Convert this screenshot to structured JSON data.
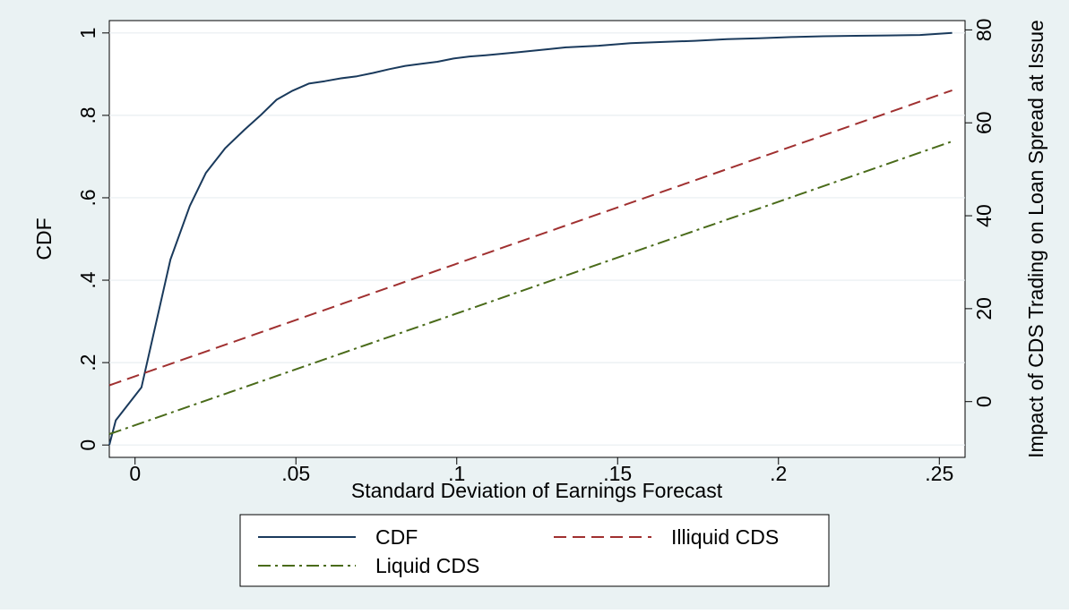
{
  "chart_data": {
    "type": "line",
    "title": "",
    "xlabel": "Standard Deviation of Earnings Forecast",
    "ylabel_left": "CDF",
    "ylabel_right": "Impact of CDS Trading on Loan Spread at Issue",
    "xlim": [
      -0.008,
      0.258
    ],
    "ylim_left": [
      -0.03,
      1.03
    ],
    "ylim_right": [
      -12,
      82
    ],
    "x_ticks": [
      {
        "value": 0,
        "label": "0"
      },
      {
        "value": 0.05,
        "label": ".05"
      },
      {
        "value": 0.1,
        "label": ".1"
      },
      {
        "value": 0.15,
        "label": ".15"
      },
      {
        "value": 0.2,
        "label": ".2"
      },
      {
        "value": 0.25,
        "label": ".25"
      }
    ],
    "y_left_ticks": [
      {
        "value": 0,
        "label": "0"
      },
      {
        "value": 0.2,
        "label": ".2"
      },
      {
        "value": 0.4,
        "label": ".4"
      },
      {
        "value": 0.6,
        "label": ".6"
      },
      {
        "value": 0.8,
        "label": ".8"
      },
      {
        "value": 1,
        "label": "1"
      }
    ],
    "y_right_ticks": [
      {
        "value": 0,
        "label": "0"
      },
      {
        "value": 20,
        "label": "20"
      },
      {
        "value": 40,
        "label": "40"
      },
      {
        "value": 60,
        "label": "60"
      },
      {
        "value": 80,
        "label": "80"
      }
    ],
    "grid": true,
    "legend_position": "bottom",
    "series": [
      {
        "name": "CDF",
        "axis": "left",
        "style": "solid",
        "color": "#1a3a5c",
        "x": [
          -0.008,
          -0.006,
          0.002,
          0.011,
          0.017,
          0.022,
          0.028,
          0.034,
          0.039,
          0.044,
          0.049,
          0.054,
          0.059,
          0.064,
          0.069,
          0.074,
          0.079,
          0.084,
          0.089,
          0.094,
          0.099,
          0.104,
          0.109,
          0.119,
          0.129,
          0.134,
          0.144,
          0.154,
          0.164,
          0.174,
          0.184,
          0.194,
          0.204,
          0.214,
          0.224,
          0.234,
          0.244,
          0.254
        ],
        "y": [
          0.0,
          0.06,
          0.14,
          0.45,
          0.58,
          0.66,
          0.72,
          0.765,
          0.8,
          0.838,
          0.86,
          0.877,
          0.883,
          0.89,
          0.895,
          0.903,
          0.912,
          0.92,
          0.925,
          0.93,
          0.938,
          0.943,
          0.946,
          0.953,
          0.961,
          0.965,
          0.969,
          0.975,
          0.978,
          0.981,
          0.985,
          0.987,
          0.99,
          0.992,
          0.993,
          0.994,
          0.995,
          1.0
        ]
      },
      {
        "name": "Illiquid CDS",
        "axis": "right",
        "style": "dash",
        "color": "#a03030",
        "x": [
          -0.008,
          0.254
        ],
        "y": [
          3.5,
          67
        ]
      },
      {
        "name": "Liquid CDS",
        "axis": "right",
        "style": "dashdot",
        "color": "#4a6b1a",
        "x": [
          -0.008,
          0.254
        ],
        "y": [
          -7,
          56
        ]
      }
    ]
  },
  "legend": {
    "items": [
      {
        "label": "CDF",
        "style": "solid",
        "color": "#1a3a5c"
      },
      {
        "label": "Illiquid CDS",
        "style": "dash",
        "color": "#a03030"
      },
      {
        "label": "Liquid CDS",
        "style": "dashdot",
        "color": "#4a6b1a"
      }
    ]
  },
  "colors": {
    "outer_background": "#eaf2f3",
    "plot_background": "#ffffff",
    "grid": "#e8eef0"
  }
}
